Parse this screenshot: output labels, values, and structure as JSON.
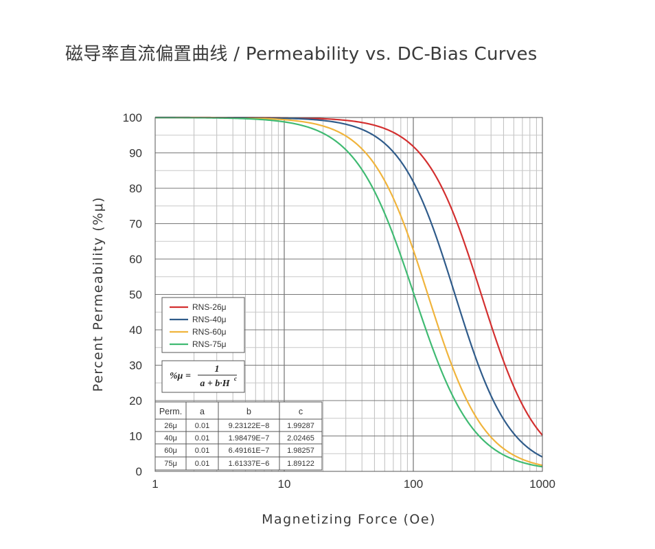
{
  "title": "磁导率直流偏置曲线 / Permeability vs. DC-Bias Curves",
  "chart_data": {
    "type": "line",
    "xlabel": "Magnetizing Force (Oe)",
    "ylabel": "Percent Permeability (%μ)",
    "x_scale": "log",
    "xlim": [
      1,
      1000
    ],
    "ylim": [
      0,
      100
    ],
    "x_ticks": [
      "1",
      "10",
      "100",
      "1000"
    ],
    "y_ticks": [
      "0",
      "10",
      "20",
      "30",
      "40",
      "50",
      "60",
      "70",
      "80",
      "90",
      "100"
    ],
    "grid": true,
    "legend_position": "lower-left",
    "formula": {
      "lhs": "%μ =",
      "numerator": "1",
      "denominator": "a + b·H",
      "exponent": "c"
    },
    "series": [
      {
        "name": "RNS-26μ",
        "color": "#d32f2f",
        "a": 0.01,
        "b": 9.23122e-08,
        "c": 1.99287
      },
      {
        "name": "RNS-40μ",
        "color": "#2f5b8a",
        "a": 0.01,
        "b": 1.98479e-07,
        "c": 2.02465
      },
      {
        "name": "RNS-60μ",
        "color": "#f0b43c",
        "a": 0.01,
        "b": 6.49161e-07,
        "c": 1.98257
      },
      {
        "name": "RNS-75μ",
        "color": "#3fba72",
        "a": 0.01,
        "b": 1.61337e-06,
        "c": 1.89122
      }
    ],
    "table": {
      "headers": [
        "Perm.",
        "a",
        "b",
        "c"
      ],
      "rows": [
        [
          "26μ",
          "0.01",
          "9.23122E−8",
          "1.99287"
        ],
        [
          "40μ",
          "0.01",
          "1.98479E−7",
          "2.02465"
        ],
        [
          "60μ",
          "0.01",
          "6.49161E−7",
          "1.98257"
        ],
        [
          "75μ",
          "0.01",
          "1.61337E−6",
          "1.89122"
        ]
      ]
    }
  }
}
